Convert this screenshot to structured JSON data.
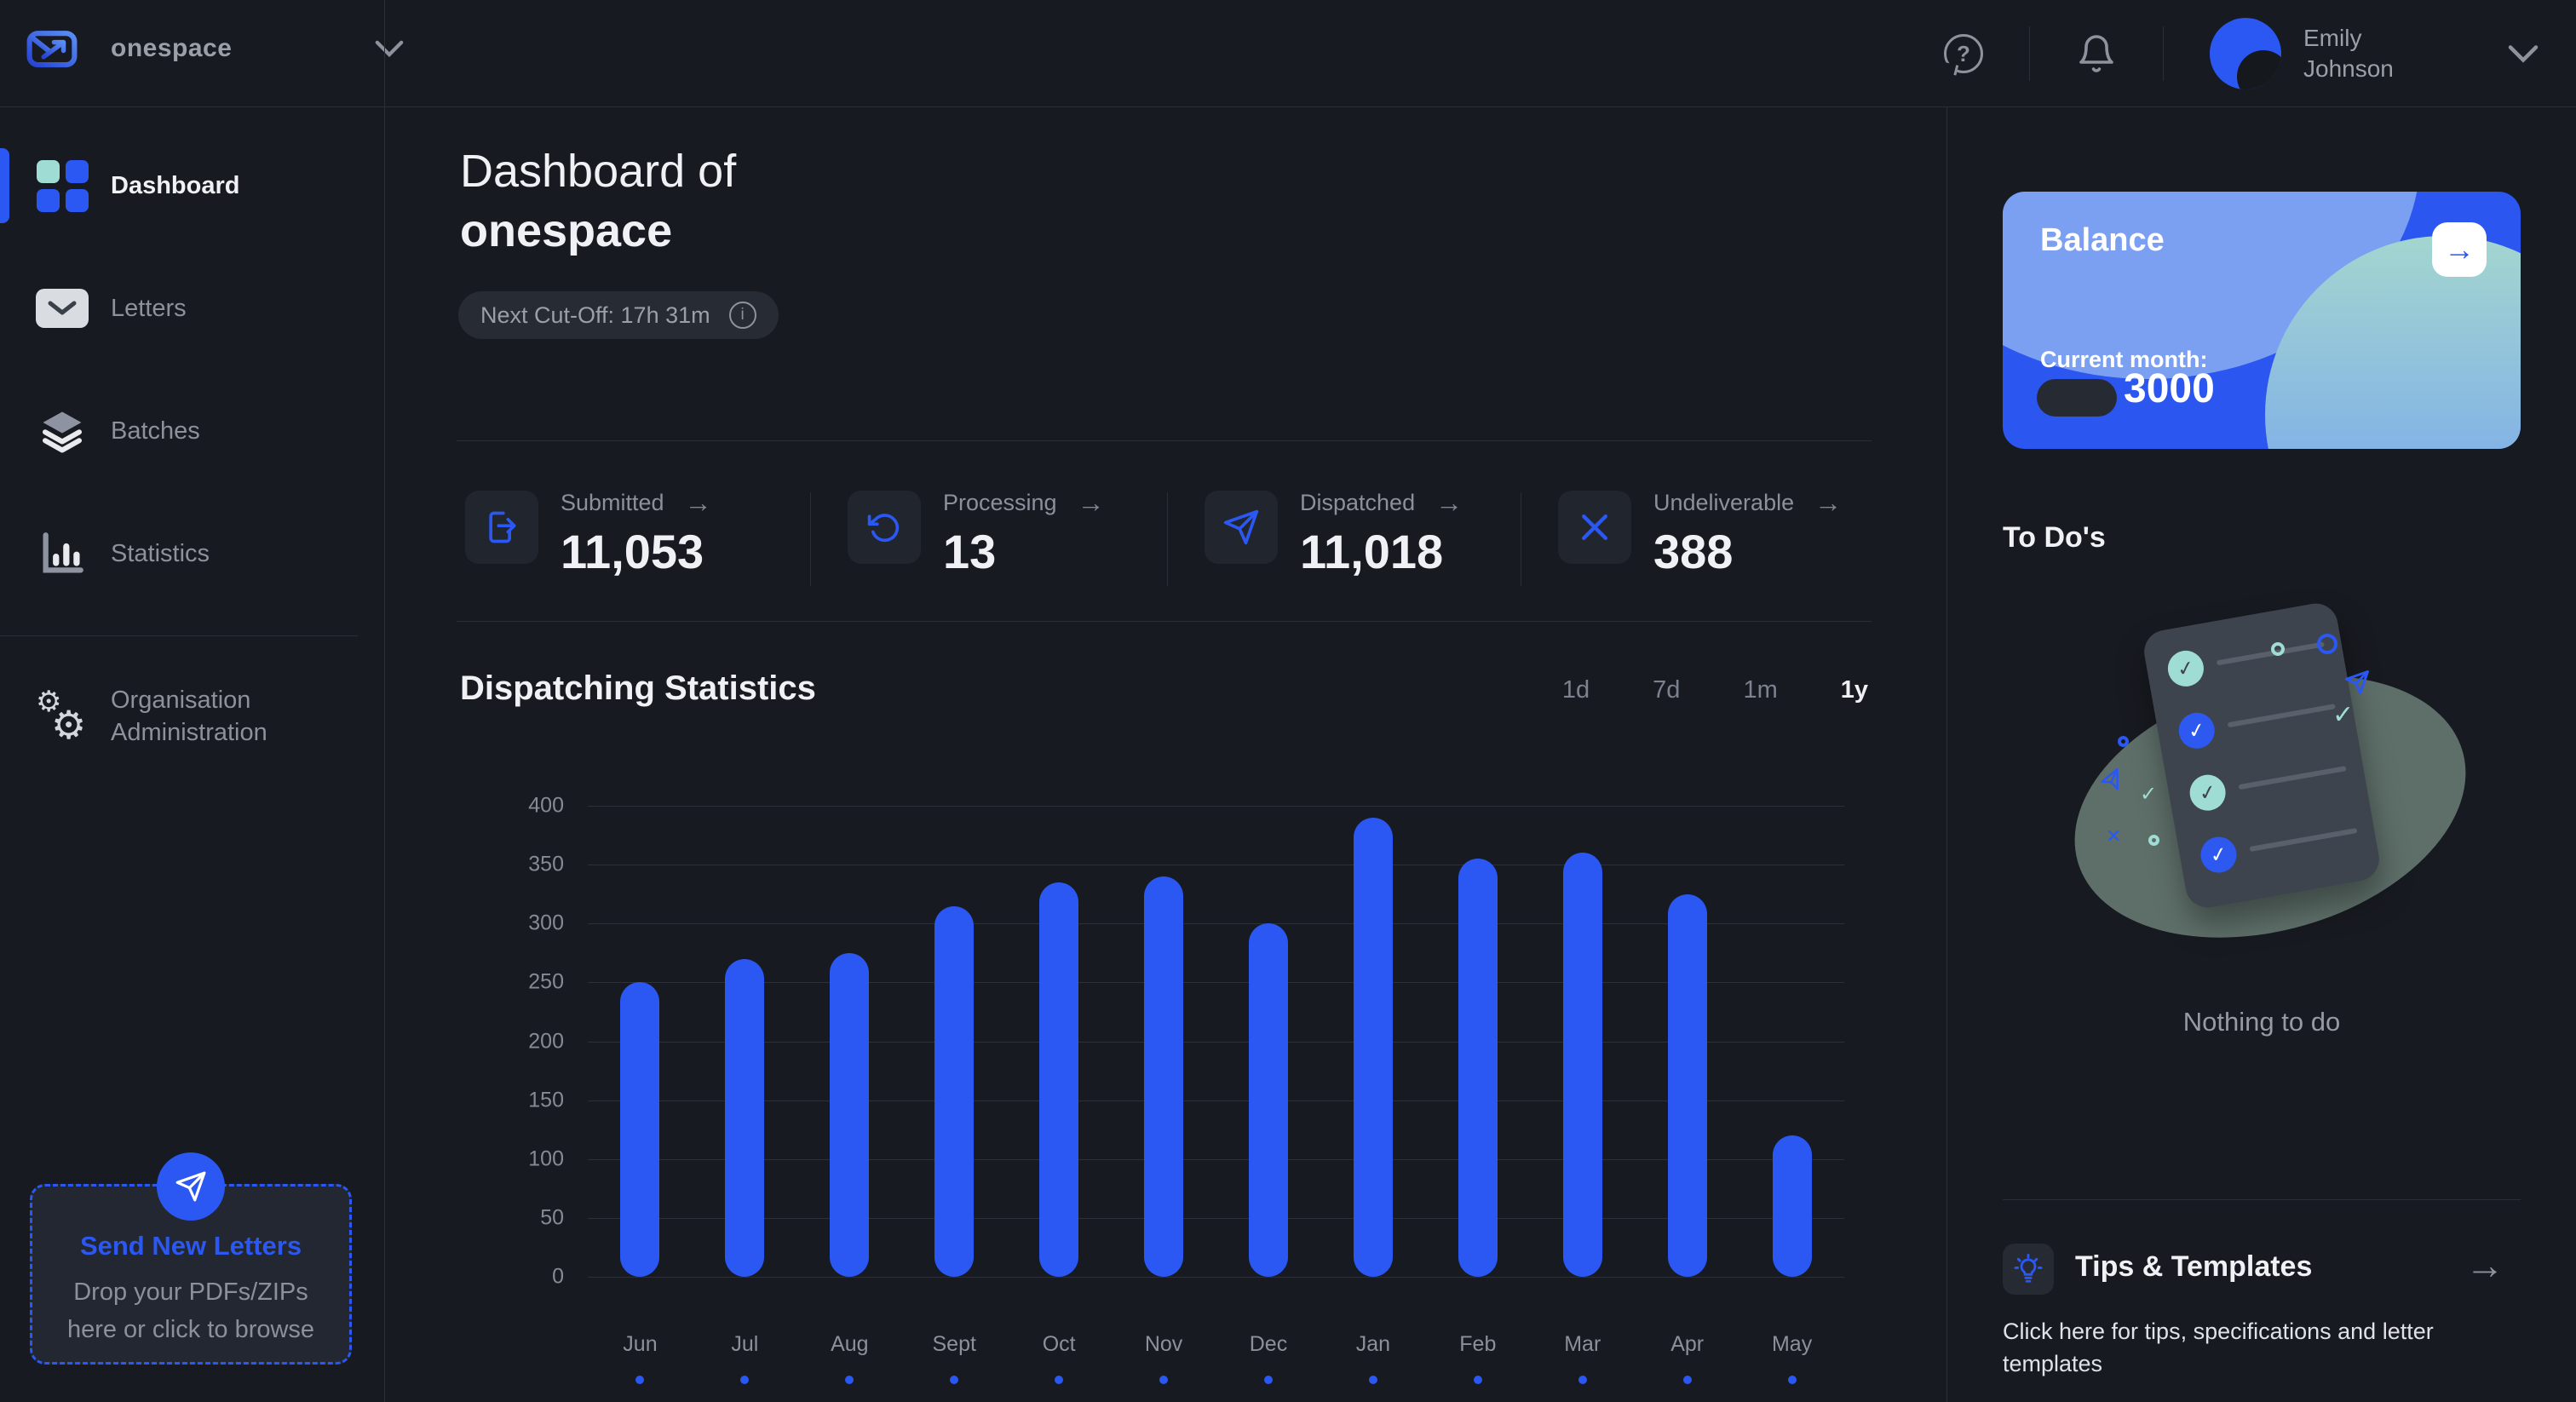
{
  "colors": {
    "accent": "#2b57f2",
    "teal": "#9fdcd4",
    "balance_card": "#2b56f0",
    "background": "#171a20",
    "bar": "#2b57f2"
  },
  "brand": {
    "name": "onespace",
    "logo_icon": "envelope-send-icon"
  },
  "header": {
    "help_icon": "help-icon",
    "notifications_icon": "bell-icon",
    "user": {
      "name": "Emily Johnson",
      "avatar_icon": "avatar"
    }
  },
  "sidebar": {
    "items": [
      {
        "label": "Dashboard",
        "icon": "dashboard-grid-icon",
        "active": true
      },
      {
        "label": "Letters",
        "icon": "envelope-icon",
        "active": false
      },
      {
        "label": "Batches",
        "icon": "layers-icon",
        "active": false
      },
      {
        "label": "Statistics",
        "icon": "bar-chart-icon",
        "active": false
      },
      {
        "label": "Organisation Administration",
        "icon": "gears-icon",
        "active": false,
        "divider_before": true
      }
    ],
    "dropzone": {
      "icon": "paper-plane-icon",
      "title": "Send New Letters",
      "description": "Drop your PDFs/ZIPs here or click to browse"
    }
  },
  "main": {
    "title_prefix": "Dashboard of",
    "title_org": "onespace",
    "cutoff": {
      "label": "Next Cut-Off: 17h 31m",
      "icon": "info-icon"
    },
    "stats": [
      {
        "label": "Submitted",
        "value": "11,053",
        "icon": "file-export-icon"
      },
      {
        "label": "Processing",
        "value": "13",
        "icon": "refresh-icon"
      },
      {
        "label": "Dispatched",
        "value": "11,018",
        "icon": "paper-plane-icon"
      },
      {
        "label": "Undeliverable",
        "value": "388",
        "icon": "x-icon"
      }
    ],
    "chart_section": {
      "title": "Dispatching Statistics",
      "ranges": [
        "1d",
        "7d",
        "1m",
        "1y"
      ],
      "active_range": "1y"
    }
  },
  "chart_data": {
    "type": "bar",
    "title": "Dispatching Statistics",
    "categories": [
      "Jun",
      "Jul",
      "Aug",
      "Sept",
      "Oct",
      "Nov",
      "Dec",
      "Jan",
      "Feb",
      "Mar",
      "Apr",
      "May"
    ],
    "values": [
      250,
      270,
      275,
      315,
      335,
      340,
      300,
      390,
      355,
      360,
      325,
      120
    ],
    "xlabel": "",
    "ylabel": "",
    "ylim": [
      0,
      400
    ],
    "ytick_step": 50,
    "grid": true,
    "legend": false,
    "bar_color": "#2b57f2"
  },
  "right_panel": {
    "balance": {
      "title": "Balance",
      "arrow_icon": "arrow-right-icon",
      "current_month_label": "Current month:",
      "amount": "3000"
    },
    "todos": {
      "title": "To Do's",
      "empty_text": "Nothing to do",
      "illustration": "checklist-clipboard"
    },
    "tips": {
      "icon": "lightbulb-icon",
      "title": "Tips & Templates",
      "arrow_icon": "arrow-right-icon",
      "description": "Click here for tips, specifications and letter templates"
    }
  }
}
